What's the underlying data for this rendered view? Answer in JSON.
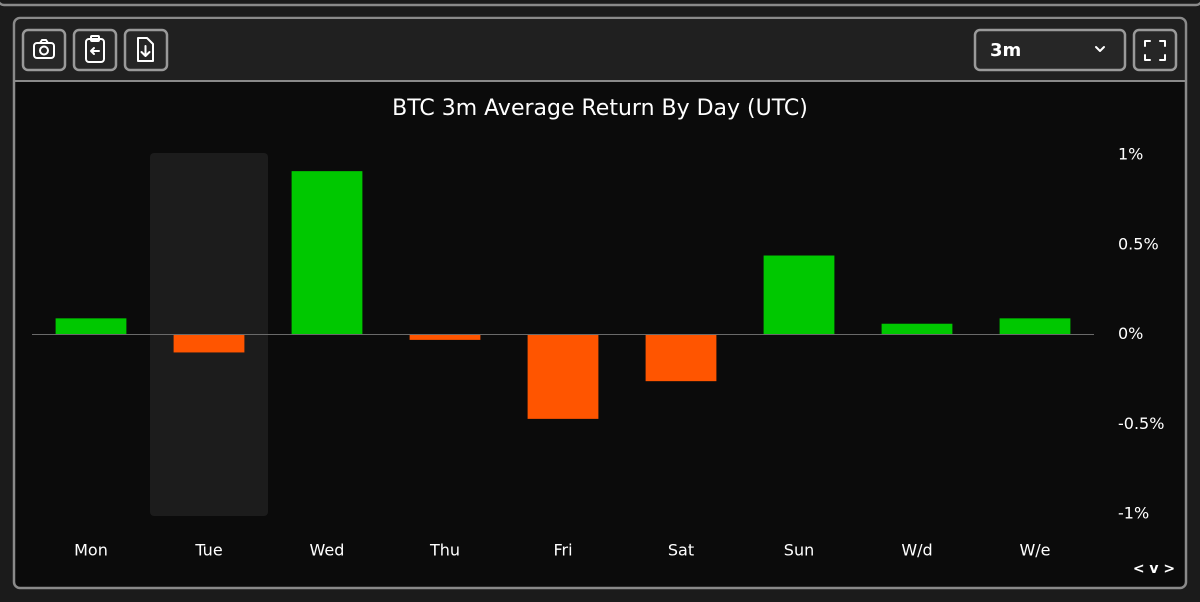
{
  "ui": {
    "period": "3m",
    "nav_label": "< v >"
  },
  "chart_data": {
    "type": "bar",
    "title": "BTC 3m Average Return By Day (UTC)",
    "categories": [
      "Mon",
      "Tue",
      "Wed",
      "Thu",
      "Fri",
      "Sat",
      "Sun",
      "W/d",
      "W/e"
    ],
    "values": [
      0.09,
      -0.1,
      0.91,
      -0.03,
      -0.47,
      -0.26,
      0.44,
      0.06,
      0.09
    ],
    "positive_color": "#00c800",
    "negative_color": "#ff5500",
    "ylim": [
      -1,
      1
    ],
    "yticks": [
      {
        "value": 1,
        "label": "1%"
      },
      {
        "value": 0.5,
        "label": "0.5%"
      },
      {
        "value": 0,
        "label": "0%"
      },
      {
        "value": -0.5,
        "label": "-0.5%"
      },
      {
        "value": -1,
        "label": "-1%"
      }
    ],
    "grid": false,
    "zero_line": true,
    "y_axis_side": "right"
  }
}
